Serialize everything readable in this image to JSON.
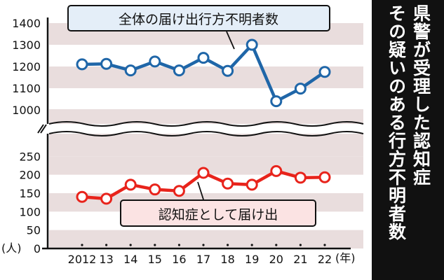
{
  "colors": {
    "background": "#ffffff",
    "band": "#e9dddd",
    "total_series": "#1f66a8",
    "dementia_series": "#e8231b",
    "label_box_total_bg": "#e4eef8",
    "label_box_dementia_bg": "#fbe3e3",
    "title_panel": "#111111"
  },
  "side_title": {
    "columns": [
      "県警が受理した認知症",
      "その疑いのある行方不明者数"
    ]
  },
  "chart_data": [
    {
      "type": "line",
      "panel": "upper",
      "x": [
        "2012",
        "13",
        "14",
        "15",
        "16",
        "17",
        "18",
        "19",
        "20",
        "21",
        "22"
      ],
      "series": [
        {
          "name": "全体の届け出行方不明者数",
          "values": [
            1210,
            1212,
            1182,
            1223,
            1182,
            1240,
            1180,
            1300,
            1040,
            1098,
            1175
          ]
        }
      ],
      "ylim": [
        950,
        1400
      ],
      "yticks": [
        "1400",
        "1300",
        "1200",
        "1100",
        "1000"
      ],
      "grid": "horizontal bands",
      "axis_break": true
    },
    {
      "type": "line",
      "panel": "lower",
      "x": [
        "2012",
        "13",
        "14",
        "15",
        "16",
        "17",
        "18",
        "19",
        "20",
        "21",
        "22"
      ],
      "series": [
        {
          "name": "認知症として届け出",
          "values": [
            140,
            135,
            173,
            160,
            156,
            205,
            176,
            173,
            210,
            192,
            193
          ]
        }
      ],
      "ylim": [
        0,
        250
      ],
      "yticks": [
        "250",
        "200",
        "150",
        "100",
        "50",
        "0"
      ],
      "grid": "horizontal bands",
      "unit_label": "(人)",
      "x_unit": "(年)"
    }
  ]
}
